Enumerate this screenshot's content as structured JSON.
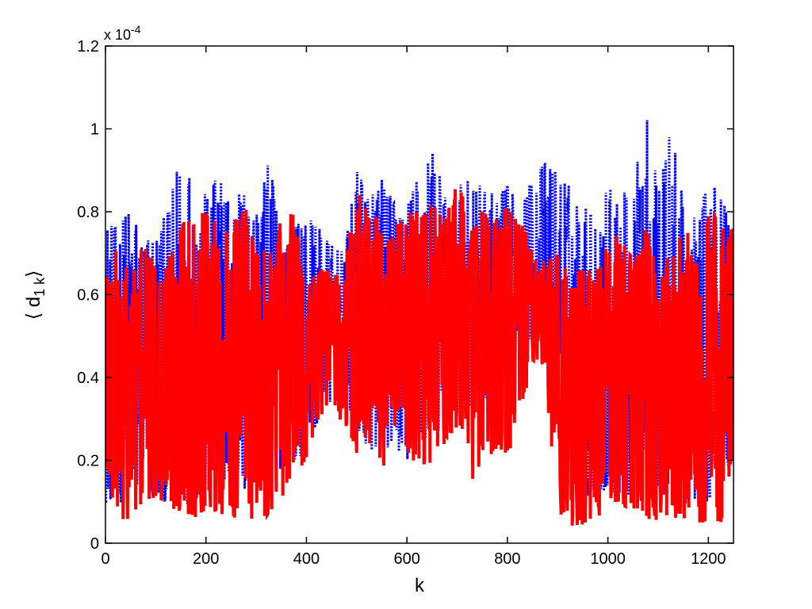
{
  "chart_data": {
    "type": "line",
    "xlabel": "k",
    "ylabel": "⟨ d",
    "ylabel_sub": "1 k",
    "ylabel_close": "⟩",
    "y_multiplier": "x 10",
    "y_multiplier_exp": "-4",
    "xlim": [
      0,
      1250
    ],
    "ylim": [
      0,
      1.2
    ],
    "x_ticks": [
      0,
      200,
      400,
      600,
      800,
      1000,
      1200
    ],
    "y_ticks": [
      0,
      0.2,
      0.4,
      0.6,
      0.8,
      1,
      1.2
    ],
    "x_tick_labels": [
      "0",
      "200",
      "400",
      "600",
      "800",
      "1000",
      "1200"
    ],
    "y_tick_labels": [
      "0",
      "0.2",
      "0.4",
      "0.6",
      "0.8",
      "1",
      "1.2"
    ],
    "grid": false,
    "colors": {
      "series_dotted": "#0000ff",
      "series_solid": "#ff0000",
      "axes": "#000000"
    },
    "series": [
      {
        "style": "dotted",
        "color": "#0000ff",
        "x": [
          0,
          25,
          50,
          75,
          100,
          125,
          150,
          175,
          200,
          225,
          250,
          275,
          300,
          325,
          350,
          375,
          400,
          425,
          450,
          475,
          500,
          525,
          550,
          575,
          600,
          625,
          650,
          675,
          700,
          725,
          750,
          775,
          800,
          825,
          850,
          875,
          900,
          925,
          950,
          975,
          1000,
          1025,
          1050,
          1075,
          1100,
          1125,
          1150,
          1175,
          1200,
          1225,
          1250
        ],
        "min": [
          0.1,
          0.1,
          0.09,
          0.1,
          0.1,
          0.1,
          0.11,
          0.08,
          0.12,
          0.12,
          0.12,
          0.1,
          0.12,
          0.14,
          0.18,
          0.2,
          0.22,
          0.3,
          0.34,
          0.34,
          0.28,
          0.22,
          0.24,
          0.22,
          0.2,
          0.22,
          0.26,
          0.28,
          0.3,
          0.32,
          0.34,
          0.38,
          0.42,
          0.46,
          0.5,
          0.48,
          0.3,
          0.2,
          0.12,
          0.1,
          0.12,
          0.12,
          0.1,
          0.1,
          0.12,
          0.1,
          0.1,
          0.1,
          0.1,
          0.12,
          0.2
        ],
        "max": [
          0.78,
          0.76,
          0.82,
          0.74,
          0.76,
          0.8,
          0.96,
          0.88,
          0.84,
          0.89,
          0.84,
          0.86,
          0.82,
          0.92,
          0.8,
          0.76,
          0.8,
          0.76,
          0.72,
          0.7,
          0.9,
          0.86,
          0.88,
          0.82,
          0.82,
          0.9,
          0.96,
          0.84,
          0.86,
          0.88,
          0.86,
          0.84,
          0.86,
          0.82,
          0.88,
          0.92,
          0.9,
          0.86,
          0.82,
          0.8,
          0.86,
          0.86,
          0.82,
          1.1,
          0.84,
          1.02,
          0.82,
          0.8,
          0.86,
          0.88,
          0.78
        ]
      },
      {
        "style": "solid",
        "color": "#ff0000",
        "x": [
          0,
          25,
          50,
          75,
          100,
          125,
          150,
          175,
          200,
          225,
          250,
          275,
          300,
          325,
          350,
          375,
          400,
          425,
          450,
          475,
          500,
          525,
          550,
          575,
          600,
          625,
          650,
          675,
          700,
          725,
          750,
          775,
          800,
          825,
          850,
          875,
          900,
          925,
          950,
          975,
          1000,
          1025,
          1050,
          1075,
          1100,
          1125,
          1150,
          1175,
          1200,
          1225,
          1250
        ],
        "min": [
          0.14,
          0.04,
          0.06,
          0.08,
          0.1,
          0.06,
          0.08,
          0.06,
          0.08,
          0.06,
          0.06,
          0.06,
          0.05,
          0.07,
          0.1,
          0.16,
          0.2,
          0.3,
          0.34,
          0.26,
          0.2,
          0.24,
          0.18,
          0.18,
          0.2,
          0.16,
          0.2,
          0.24,
          0.28,
          0.14,
          0.2,
          0.22,
          0.2,
          0.3,
          0.44,
          0.4,
          0.08,
          0.04,
          0.04,
          0.06,
          0.06,
          0.08,
          0.06,
          0.06,
          0.05,
          0.06,
          0.06,
          0.05,
          0.05,
          0.05,
          0.16
        ],
        "max": [
          0.73,
          0.7,
          0.66,
          0.74,
          0.66,
          0.7,
          0.78,
          0.8,
          0.8,
          0.78,
          0.74,
          0.87,
          0.7,
          0.72,
          0.78,
          0.8,
          0.64,
          0.66,
          0.66,
          0.66,
          0.86,
          0.82,
          0.76,
          0.76,
          0.8,
          0.8,
          0.82,
          0.78,
          0.87,
          0.8,
          0.8,
          0.78,
          0.82,
          0.78,
          0.72,
          0.68,
          0.7,
          0.66,
          0.66,
          0.66,
          0.72,
          0.76,
          0.68,
          0.78,
          0.66,
          0.7,
          0.78,
          0.7,
          0.8,
          0.78,
          0.76
        ]
      }
    ]
  }
}
